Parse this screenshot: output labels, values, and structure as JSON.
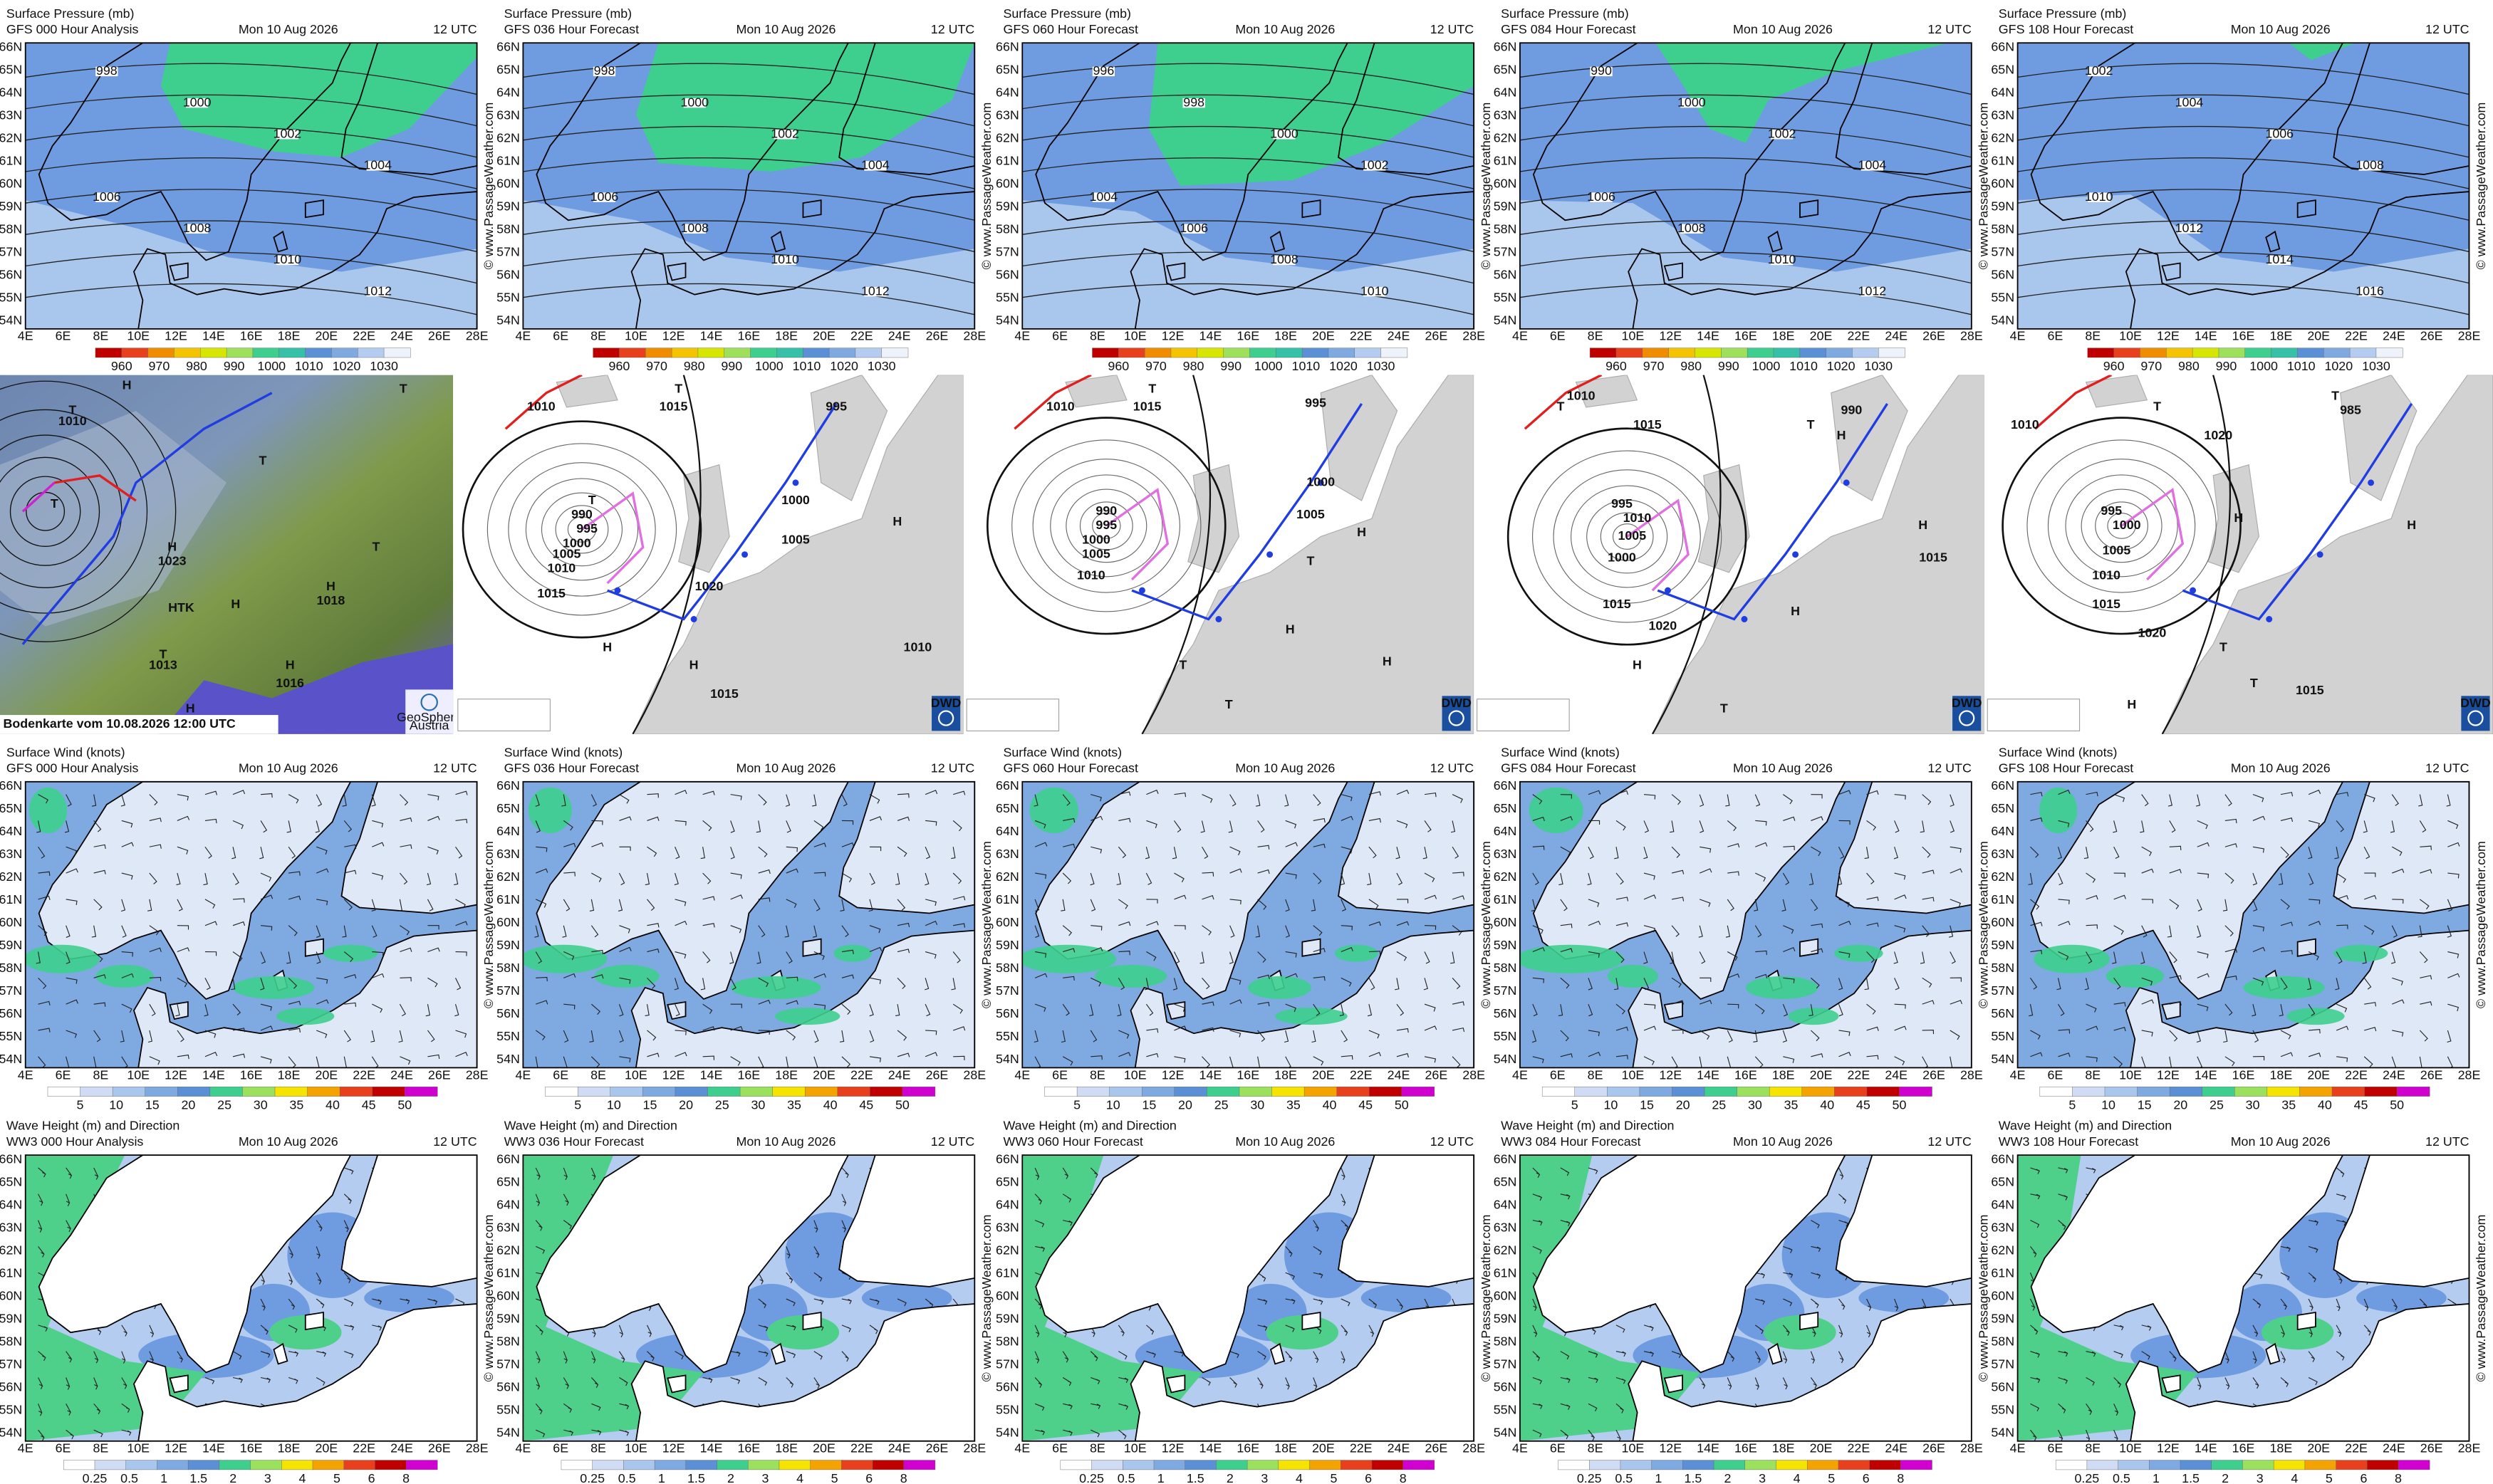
{
  "rows": [
    {
      "panels": [
        {
          "title": "Surface Pressure (mb)",
          "subtitle": "GFS 000 Hour Analysis",
          "date": "Mon 10 Aug 2026",
          "time": "12 UTC",
          "isobar_labels": [
            998,
            1000,
            1002,
            1004,
            1006,
            1008,
            1010,
            1012
          ]
        },
        {
          "title": "Surface Pressure (mb)",
          "subtitle": "GFS 036 Hour Forecast",
          "date": "Mon 10 Aug 2026",
          "time": "12 UTC",
          "isobar_labels": [
            998,
            1000,
            1002,
            1004,
            1006,
            1008,
            1010,
            1012
          ]
        },
        {
          "title": "Surface Pressure (mb)",
          "subtitle": "GFS 060 Hour Forecast",
          "date": "Mon 10 Aug 2026",
          "time": "12 UTC",
          "isobar_labels": [
            996,
            998,
            1000,
            1002,
            1004,
            1006,
            1008,
            1010
          ]
        },
        {
          "title": "Surface Pressure (mb)",
          "subtitle": "GFS 084 Hour Forecast",
          "date": "Mon 10 Aug 2026",
          "time": "12 UTC",
          "isobar_labels": [
            990,
            1000,
            1002,
            1004,
            1006,
            1008,
            1010,
            1012
          ]
        },
        {
          "title": "Surface Pressure (mb)",
          "subtitle": "GFS 108 Hour Forecast",
          "date": "Mon 10 Aug 2026",
          "time": "12 UTC",
          "isobar_labels": [
            1002,
            1004,
            1006,
            1008,
            1010,
            1012,
            1014,
            1016
          ]
        }
      ],
      "colorbar": [
        960,
        970,
        980,
        990,
        1000,
        1010,
        1020,
        1030
      ]
    },
    {
      "panels": [
        {
          "title": "Surface Wind (knots)",
          "subtitle": "GFS 000 Hour Analysis",
          "date": "Mon 10 Aug 2026",
          "time": "12 UTC"
        },
        {
          "title": "Surface Wind (knots)",
          "subtitle": "GFS 036 Hour Forecast",
          "date": "Mon 10 Aug 2026",
          "time": "12 UTC"
        },
        {
          "title": "Surface Wind (knots)",
          "subtitle": "GFS 060 Hour Forecast",
          "date": "Mon 10 Aug 2026",
          "time": "12 UTC"
        },
        {
          "title": "Surface Wind (knots)",
          "subtitle": "GFS 084 Hour Forecast",
          "date": "Mon 10 Aug 2026",
          "time": "12 UTC"
        },
        {
          "title": "Surface Wind (knots)",
          "subtitle": "GFS 108 Hour Forecast",
          "date": "Mon 10 Aug 2026",
          "time": "12 UTC"
        }
      ],
      "colorbar": [
        5,
        10,
        15,
        20,
        25,
        30,
        35,
        40,
        45,
        50
      ]
    },
    {
      "panels": [
        {
          "title": "Wave Height (m) and Direction",
          "subtitle": "WW3 000 Hour Analysis",
          "date": "Mon 10 Aug 2026",
          "time": "12 UTC"
        },
        {
          "title": "Wave Height (m) and Direction",
          "subtitle": "WW3 036 Hour Forecast",
          "date": "Mon 10 Aug 2026",
          "time": "12 UTC"
        },
        {
          "title": "Wave Height (m) and Direction",
          "subtitle": "WW3 060 Hour Forecast",
          "date": "Mon 10 Aug 2026",
          "time": "12 UTC"
        },
        {
          "title": "Wave Height (m) and Direction",
          "subtitle": "WW3 084 Hour Forecast",
          "date": "Mon 10 Aug 2026",
          "time": "12 UTC"
        },
        {
          "title": "Wave Height (m) and Direction",
          "subtitle": "WW3 108 Hour Forecast",
          "date": "Mon 10 Aug 2026",
          "time": "12 UTC"
        }
      ],
      "colorbar": [
        0.25,
        0.5,
        1,
        1.5,
        2,
        3,
        4,
        5,
        6,
        8
      ]
    }
  ],
  "lat_labels": [
    "66N",
    "65N",
    "64N",
    "63N",
    "62N",
    "61N",
    "60N",
    "59N",
    "58N",
    "57N",
    "56N",
    "55N",
    "54N"
  ],
  "lon_labels": [
    "4E",
    "6E",
    "8E",
    "10E",
    "12E",
    "14E",
    "16E",
    "18E",
    "20E",
    "22E",
    "24E",
    "26E",
    "28E"
  ],
  "watermark": "© www.PassageWeather.com",
  "analysis": {
    "satellite": {
      "caption": "Bodenkarte vom 10.08.2026 12:00 UTC",
      "logo": [
        "GeoSphere",
        "Austria"
      ],
      "labels": [
        "T",
        "H",
        "1010",
        "T",
        "T",
        "H",
        "1023",
        "HTK",
        "H",
        "H",
        "1018",
        "T",
        "1013",
        "H",
        "1016",
        "T",
        "H",
        "T"
      ]
    },
    "dwd_maps": [
      {
        "logo": "DWD",
        "labels": [
          "1010",
          "1015",
          "T",
          "990",
          "995",
          "1000",
          "1005",
          "1010",
          "1015",
          "T",
          "1020",
          "H",
          "H",
          "995",
          "1000",
          "1005",
          "H",
          "1015",
          "1010"
        ]
      },
      {
        "logo": "DWD",
        "labels": [
          "1010",
          "1015",
          "T",
          "990",
          "995",
          "1000",
          "1005",
          "1010",
          "995",
          "1000",
          "1005",
          "H",
          "T",
          "H",
          "T",
          "T",
          "H"
        ]
      },
      {
        "logo": "DWD",
        "labels": [
          "1010",
          "T",
          "1015",
          "1010",
          "1005",
          "1000",
          "995",
          "1015",
          "1020",
          "H",
          "T",
          "990",
          "H",
          "H",
          "1015",
          "T",
          "H"
        ]
      },
      {
        "logo": "DWD",
        "labels": [
          "1010",
          "T",
          "985",
          "T",
          "1020",
          "1000",
          "995",
          "1005",
          "1010",
          "1015",
          "1020",
          "H",
          "H",
          "T",
          "T",
          "1015",
          "H"
        ]
      }
    ]
  }
}
